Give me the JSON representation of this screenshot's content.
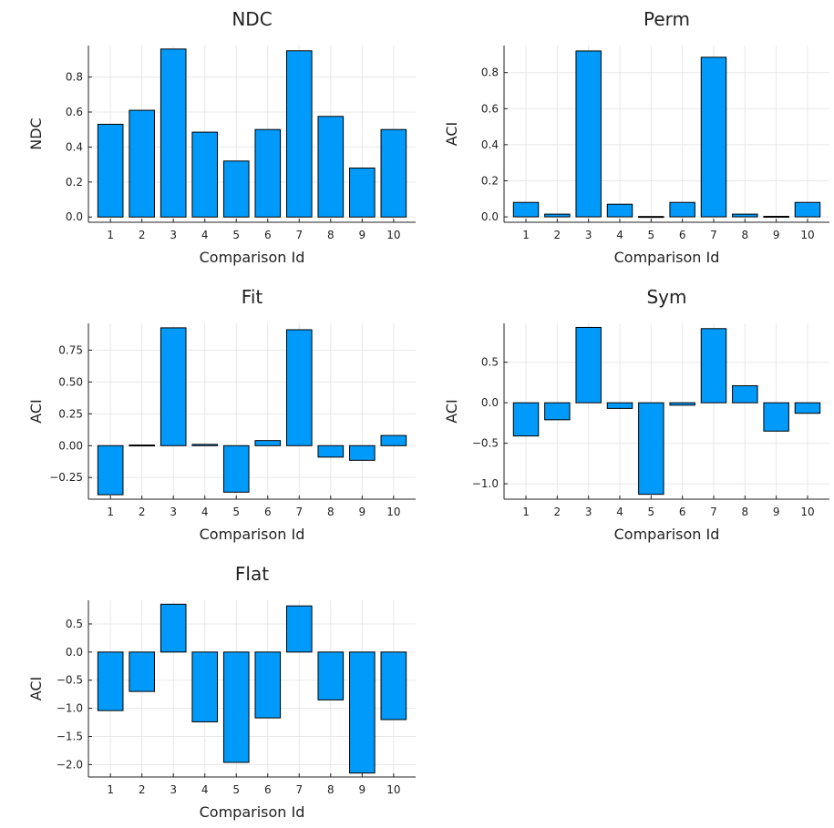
{
  "colors": {
    "bar": "#009AFA",
    "bar_stroke": "#000000"
  },
  "chart_data": [
    {
      "type": "bar",
      "title": "NDC",
      "xlabel": "Comparison Id",
      "ylabel": "NDC",
      "categories": [
        "1",
        "2",
        "3",
        "4",
        "5",
        "6",
        "7",
        "8",
        "9",
        "10"
      ],
      "values": [
        0.53,
        0.61,
        0.96,
        0.485,
        0.32,
        0.5,
        0.95,
        0.575,
        0.28,
        0.5
      ],
      "ylim": [
        -0.03,
        0.98
      ],
      "yticks": [
        0.0,
        0.2,
        0.4,
        0.6,
        0.8
      ],
      "ytick_labels": [
        "0.0",
        "0.2",
        "0.4",
        "0.6",
        "0.8"
      ],
      "grid": true,
      "legend": "none"
    },
    {
      "type": "bar",
      "title": "Perm",
      "xlabel": "Comparison Id",
      "ylabel": "ACI",
      "categories": [
        "1",
        "2",
        "3",
        "4",
        "5",
        "6",
        "7",
        "8",
        "9",
        "10"
      ],
      "values": [
        0.08,
        0.015,
        0.92,
        0.07,
        0.002,
        0.08,
        0.885,
        0.015,
        0.003,
        0.08
      ],
      "ylim": [
        -0.03,
        0.95
      ],
      "yticks": [
        0.0,
        0.2,
        0.4,
        0.6,
        0.8
      ],
      "ytick_labels": [
        "0.0",
        "0.2",
        "0.4",
        "0.6",
        "0.8"
      ],
      "grid": true,
      "legend": "none"
    },
    {
      "type": "bar",
      "title": "Fit",
      "xlabel": "Comparison Id",
      "ylabel": "ACI",
      "categories": [
        "1",
        "2",
        "3",
        "4",
        "5",
        "6",
        "7",
        "8",
        "9",
        "10"
      ],
      "values": [
        -0.385,
        0.005,
        0.925,
        0.01,
        -0.365,
        0.04,
        0.91,
        -0.09,
        -0.115,
        0.08
      ],
      "ylim": [
        -0.42,
        0.96
      ],
      "yticks": [
        -0.25,
        0.0,
        0.25,
        0.5,
        0.75
      ],
      "ytick_labels": [
        "−0.25",
        "0.00",
        "0.25",
        "0.50",
        "0.75"
      ],
      "grid": true,
      "legend": "none"
    },
    {
      "type": "bar",
      "title": "Sym",
      "xlabel": "Comparison Id",
      "ylabel": "ACI",
      "categories": [
        "1",
        "2",
        "3",
        "4",
        "5",
        "6",
        "7",
        "8",
        "9",
        "10"
      ],
      "values": [
        -0.41,
        -0.21,
        0.93,
        -0.07,
        -1.13,
        -0.03,
        0.915,
        0.21,
        -0.35,
        -0.13
      ],
      "ylim": [
        -1.19,
        0.98
      ],
      "yticks": [
        -1.0,
        -0.5,
        0.0,
        0.5
      ],
      "ytick_labels": [
        "−1.0",
        "−0.5",
        "0.0",
        "0.5"
      ],
      "grid": true,
      "legend": "none"
    },
    {
      "type": "bar",
      "title": "Flat",
      "xlabel": "Comparison Id",
      "ylabel": "ACI",
      "categories": [
        "1",
        "2",
        "3",
        "4",
        "5",
        "6",
        "7",
        "8",
        "9",
        "10"
      ],
      "values": [
        -1.04,
        -0.7,
        0.85,
        -1.24,
        -1.96,
        -1.17,
        0.82,
        -0.85,
        -2.15,
        -1.2
      ],
      "ylim": [
        -2.22,
        0.92
      ],
      "yticks": [
        -2.0,
        -1.5,
        -1.0,
        -0.5,
        0.0,
        0.5
      ],
      "ytick_labels": [
        "−2.0",
        "−1.5",
        "−1.0",
        "−0.5",
        "0.0",
        "0.5"
      ],
      "grid": true,
      "legend": "none"
    }
  ]
}
